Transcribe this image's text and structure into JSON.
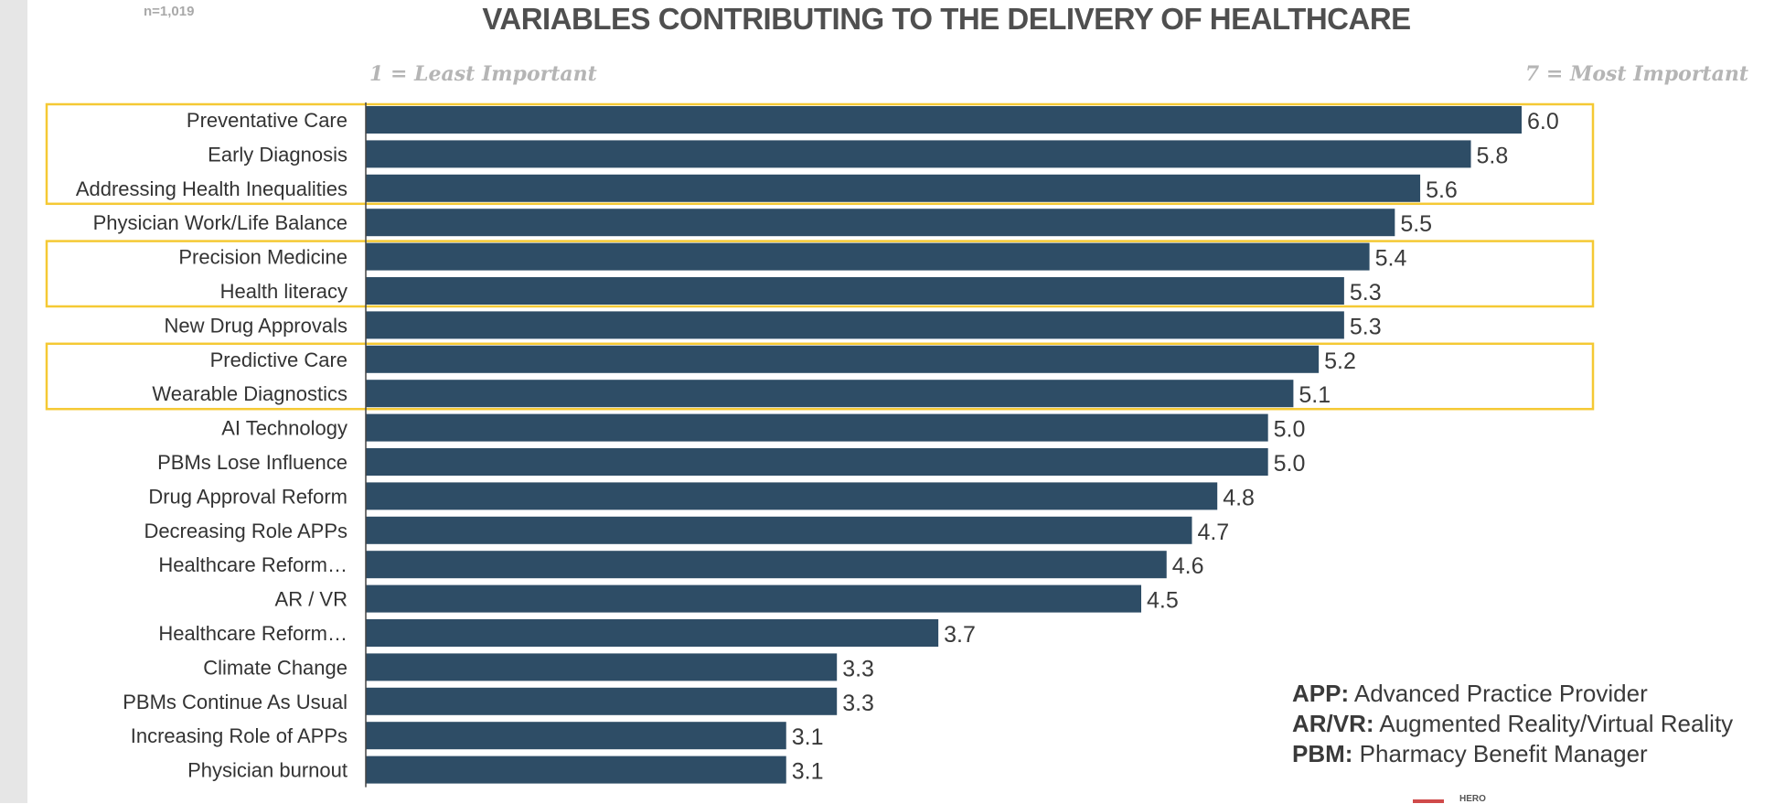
{
  "sample_size": "n=1,019",
  "scale": {
    "least": "1 = Least Important",
    "most": "7 = Most Important"
  },
  "chart_data": {
    "type": "bar",
    "orientation": "horizontal",
    "title": "VARIABLES CONTRIBUTING TO THE DELIVERY OF HEALTHCARE",
    "xlabel": "",
    "ylabel": "",
    "xlim": [
      0,
      7
    ],
    "grid": false,
    "bar_color": "#2e4d66",
    "highlight_color": "#f5c934",
    "categories": [
      "Preventative Care",
      "Early Diagnosis",
      "Addressing Health Inequalities",
      "Physician Work/Life Balance",
      "Precision Medicine",
      "Health literacy",
      "New Drug Approvals",
      "Predictive Care",
      "Wearable Diagnostics",
      "AI Technology",
      "PBMs Lose Influence",
      "Drug Approval Reform",
      "Decreasing Role APPs",
      "Healthcare Reform…",
      "AR / VR",
      "Healthcare Reform…",
      "Climate Change",
      "PBMs Continue As Usual",
      "Increasing Role of APPs",
      "Physician burnout"
    ],
    "values": [
      6.0,
      5.8,
      5.6,
      5.5,
      5.4,
      5.3,
      5.3,
      5.2,
      5.1,
      5.0,
      5.0,
      4.8,
      4.7,
      4.6,
      4.5,
      3.7,
      3.3,
      3.3,
      3.1,
      3.1
    ],
    "value_labels": [
      "6.0",
      "5.8",
      "5.6",
      "5.5",
      "5.4",
      "5.3",
      "5.3",
      "5.2",
      "5.1",
      "5.0",
      "5.0",
      "4.8",
      "4.7",
      "4.6",
      "4.5",
      "3.7",
      "3.3",
      "3.3",
      "3.1",
      "3.1"
    ],
    "highlight_groups": [
      [
        0,
        2
      ],
      [
        4,
        5
      ],
      [
        7,
        8
      ]
    ]
  },
  "legend": [
    {
      "abbr": "APP:",
      "text": " Advanced Practice Provider"
    },
    {
      "abbr": "AR/VR:",
      "text": " Augmented Reality/Virtual Reality"
    },
    {
      "abbr": "PBM:",
      "text": " Pharmacy Benefit Manager"
    }
  ],
  "corner_text": "HERO"
}
